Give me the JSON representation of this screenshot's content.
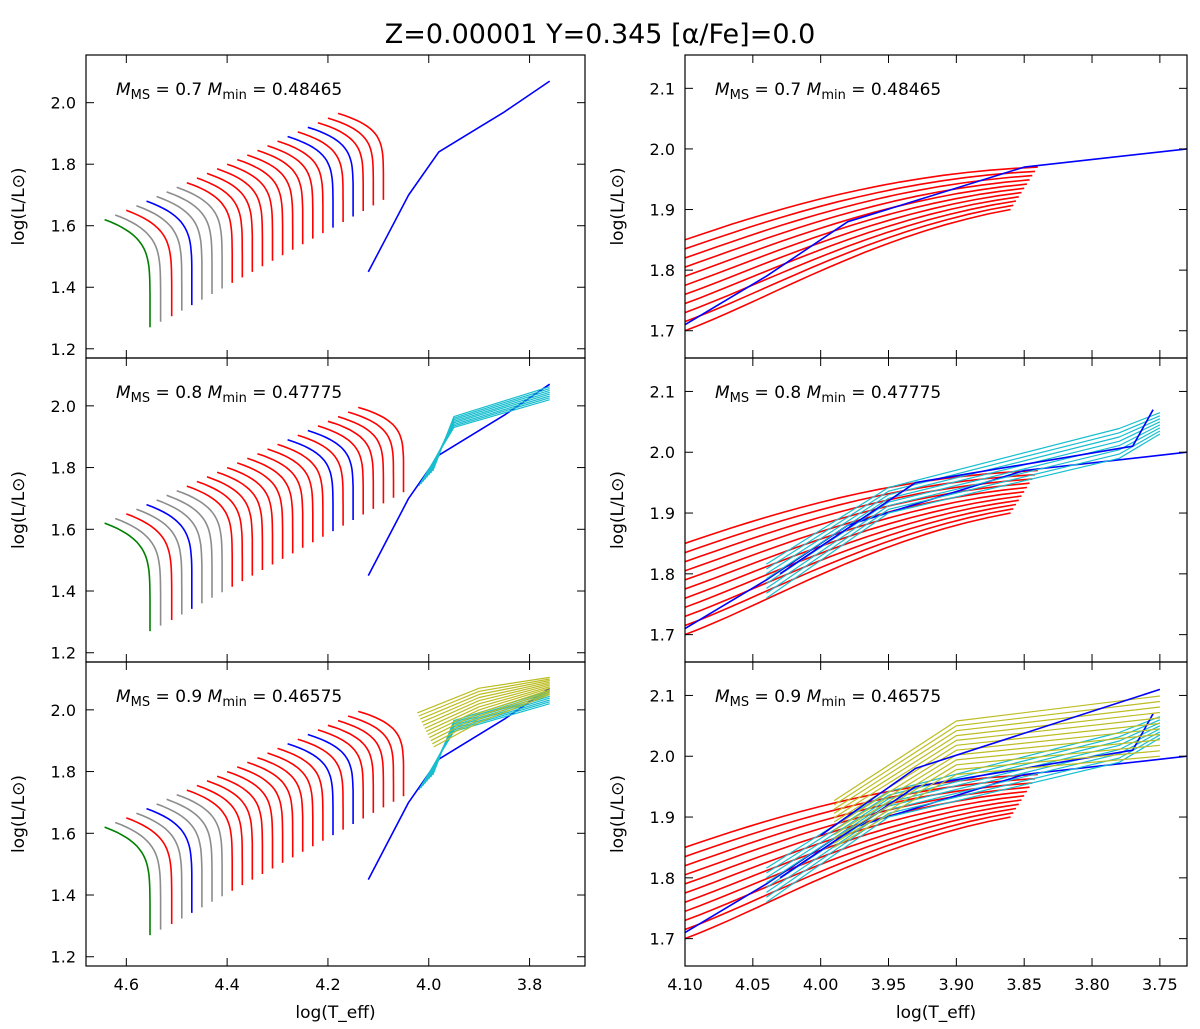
{
  "figure": {
    "title": "Z=0.00001  Y=0.345  [α/Fe]=0.0"
  },
  "chart_data": [
    {
      "panel": "top-left",
      "type": "line",
      "subtitle": "M_MS = 0.7  M_min = 0.48465",
      "ms_mass": "0.7",
      "min_mass": "0.48465",
      "xlim": [
        4.68,
        3.69
      ],
      "ylim": [
        1.17,
        2.155
      ],
      "xticks": [
        "4.6",
        "4.4",
        "4.2",
        "4.0",
        "3.8"
      ],
      "yticks": [
        "1.2",
        "1.4",
        "1.6",
        "1.8",
        "2.0"
      ],
      "xlabel": "",
      "ylabel": "log(L/L⊙)",
      "cyan_tracks": 0,
      "yellow_tracks": 0
    },
    {
      "panel": "top-right",
      "type": "line",
      "subtitle": "M_MS = 0.7  M_min = 0.48465",
      "ms_mass": "0.7",
      "min_mass": "0.48465",
      "xlim": [
        4.1,
        3.73
      ],
      "ylim": [
        1.655,
        2.155
      ],
      "xticks": [
        "4.10",
        "4.05",
        "4.00",
        "3.95",
        "3.90",
        "3.85",
        "3.80",
        "3.75"
      ],
      "yticks": [
        "1.7",
        "1.8",
        "1.9",
        "2.0",
        "2.1"
      ],
      "xlabel": "",
      "ylabel": "log(L/L⊙)",
      "cyan_tracks": 0,
      "yellow_tracks": 0
    },
    {
      "panel": "middle-left",
      "type": "line",
      "subtitle": "M_MS = 0.8  M_min = 0.47775",
      "ms_mass": "0.8",
      "min_mass": "0.47775",
      "xlim": [
        4.68,
        3.69
      ],
      "ylim": [
        1.17,
        2.155
      ],
      "xticks": [
        "4.6",
        "4.4",
        "4.2",
        "4.0",
        "3.8"
      ],
      "yticks": [
        "1.2",
        "1.4",
        "1.6",
        "1.8",
        "2.0"
      ],
      "xlabel": "",
      "ylabel": "log(L/L⊙)",
      "cyan_tracks": 8,
      "yellow_tracks": 0
    },
    {
      "panel": "middle-right",
      "type": "line",
      "subtitle": "M_MS = 0.8  M_min = 0.47775",
      "ms_mass": "0.8",
      "min_mass": "0.47775",
      "xlim": [
        4.1,
        3.73
      ],
      "ylim": [
        1.655,
        2.155
      ],
      "xticks": [
        "4.10",
        "4.05",
        "4.00",
        "3.95",
        "3.90",
        "3.85",
        "3.80",
        "3.75"
      ],
      "yticks": [
        "1.7",
        "1.8",
        "1.9",
        "2.0",
        "2.1"
      ],
      "xlabel": "",
      "ylabel": "log(L/L⊙)",
      "cyan_tracks": 8,
      "yellow_tracks": 0
    },
    {
      "panel": "bottom-left",
      "type": "line",
      "subtitle": "M_MS = 0.9  M_min = 0.46575",
      "ms_mass": "0.9",
      "min_mass": "0.46575",
      "xlim": [
        4.68,
        3.69
      ],
      "ylim": [
        1.17,
        2.155
      ],
      "xticks": [
        "4.6",
        "4.4",
        "4.2",
        "4.0",
        "3.8"
      ],
      "yticks": [
        "1.2",
        "1.4",
        "1.6",
        "1.8",
        "2.0"
      ],
      "xlabel": "log(T_eff)",
      "ylabel": "log(L/L⊙)",
      "cyan_tracks": 8,
      "yellow_tracks": 12
    },
    {
      "panel": "bottom-right",
      "type": "line",
      "subtitle": "M_MS = 0.9  M_min = 0.46575",
      "ms_mass": "0.9",
      "min_mass": "0.46575",
      "xlim": [
        4.1,
        3.73
      ],
      "ylim": [
        1.655,
        2.155
      ],
      "xticks": [
        "4.10",
        "4.05",
        "4.00",
        "3.95",
        "3.90",
        "3.85",
        "3.80",
        "3.75"
      ],
      "yticks": [
        "1.7",
        "1.8",
        "1.9",
        "2.0",
        "2.1"
      ],
      "xlabel": "log(T_eff)",
      "ylabel": "log(L/L⊙)",
      "cyan_tracks": 8,
      "yellow_tracks": 12
    }
  ],
  "colors": {
    "green": "#008000",
    "grey": "#8c8c8c",
    "red": "#ff0000",
    "blue": "#0000ff",
    "cyan": "#17becf",
    "yellow": "#bcbd22"
  }
}
